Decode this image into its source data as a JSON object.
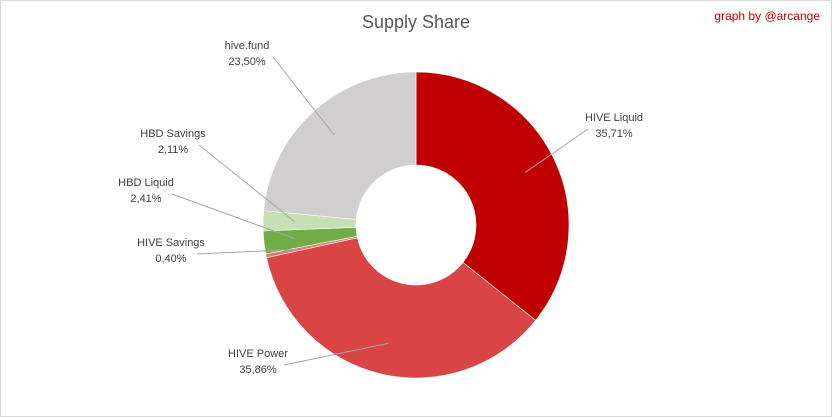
{
  "chart_data": {
    "type": "pie",
    "title": "Supply Share",
    "watermark": "graph by @arcange",
    "slices": [
      {
        "name": "HIVE Liquid",
        "value": 35.71,
        "label": "35,71%",
        "color": "#c00000"
      },
      {
        "name": "HIVE Power",
        "value": 35.86,
        "label": "35,86%",
        "color": "#d94545"
      },
      {
        "name": "HIVE Savings",
        "value": 0.4,
        "label": "0,40%",
        "color": "#e07b6e"
      },
      {
        "name": "HBD Liquid",
        "value": 2.41,
        "label": "2,41%",
        "color": "#70ad47"
      },
      {
        "name": "HBD Savings",
        "value": 2.11,
        "label": "2,11%",
        "color": "#c5e0b4"
      },
      {
        "name": "hive.fund",
        "value": 23.5,
        "label": "23,50%",
        "color": "#d0cece"
      }
    ]
  }
}
